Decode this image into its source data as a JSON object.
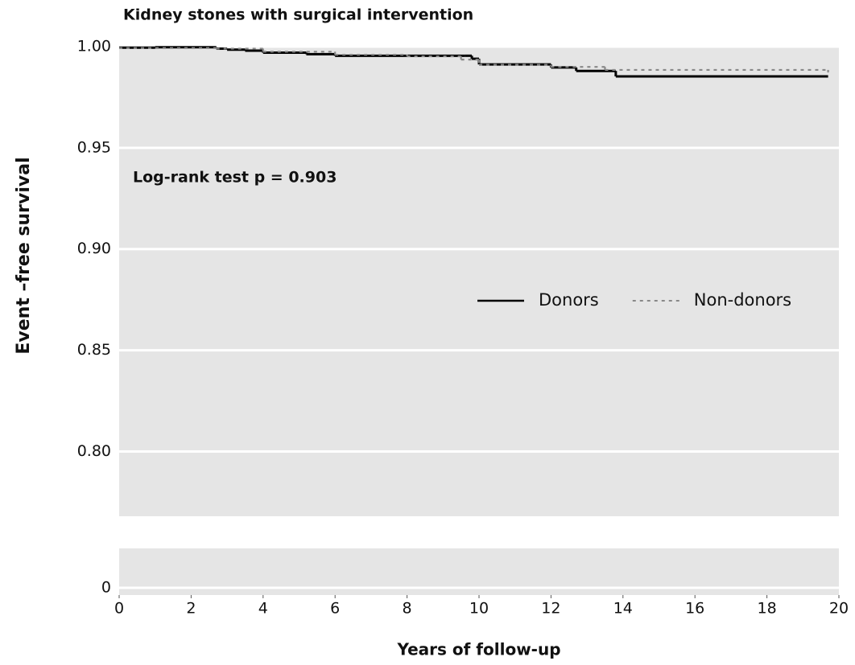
{
  "chart_data": {
    "type": "step",
    "title": "Kidney stones with surgical intervention",
    "annotation": "Log-rank test p = 0.903",
    "xlabel": "Years of follow-up",
    "ylabel": "Event –free survival",
    "xlim": [
      0,
      20
    ],
    "xticks": [
      0,
      2,
      4,
      6,
      8,
      10,
      12,
      14,
      16,
      18,
      20
    ],
    "ylim": [
      -0.0036,
      1.0
    ],
    "y_break": [
      0.0195,
      0.768
    ],
    "yticks": [
      0,
      {
        "value": 0.8,
        "label": "0.80"
      },
      {
        "value": 0.85,
        "label": "0.85"
      },
      {
        "value": 0.9,
        "label": "0.90"
      },
      {
        "value": 0.95,
        "label": "0.95"
      },
      {
        "value": 1.0,
        "label": "1.00"
      }
    ],
    "grid": true,
    "legend": "center-right",
    "series": [
      {
        "name": "Donors",
        "color": "#000000",
        "dash": "solid",
        "x": [
          0,
          1,
          2.7,
          3,
          3.5,
          4,
          5.2,
          6,
          9.6,
          9.8,
          10,
          12,
          12.7,
          13.8,
          19.7
        ],
        "values": [
          0.9995,
          0.9997,
          0.999,
          0.9985,
          0.998,
          0.997,
          0.9963,
          0.9955,
          0.9955,
          0.994,
          0.9912,
          0.9897,
          0.988,
          0.9853,
          0.9853
        ]
      },
      {
        "name": "Non-donors",
        "color": "#888888",
        "dash": "dotted",
        "x": [
          0,
          2.7,
          4,
          6,
          8,
          9.5,
          10,
          12,
          13.5,
          19.7
        ],
        "values": [
          0.9993,
          0.999,
          0.9975,
          0.996,
          0.9952,
          0.9936,
          0.991,
          0.99,
          0.9885,
          0.9873
        ]
      }
    ]
  }
}
